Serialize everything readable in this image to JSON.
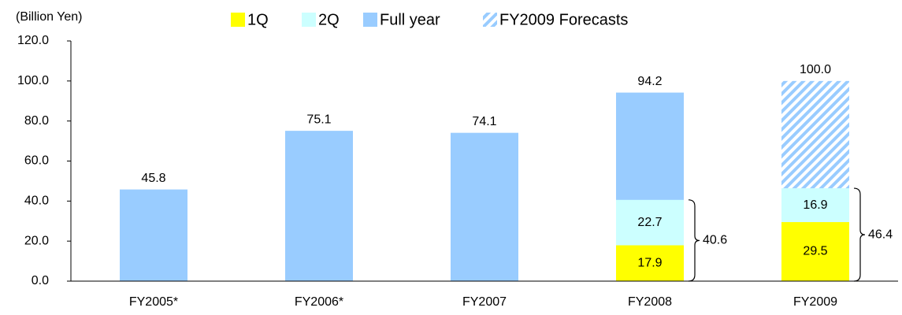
{
  "chart_data": {
    "type": "bar",
    "unit_label": "(Billion Yen)",
    "categories": [
      "FY2005*",
      "FY2006*",
      "FY2007",
      "FY2008",
      "FY2009"
    ],
    "series": [
      {
        "name": "1Q",
        "color": "#ffff00",
        "stacked": true,
        "values": [
          null,
          null,
          null,
          17.9,
          29.5
        ]
      },
      {
        "name": "2Q",
        "color": "#ccffff",
        "stacked": true,
        "values": [
          null,
          null,
          null,
          22.7,
          16.9
        ]
      },
      {
        "name": "Full year",
        "color": "#99ccff",
        "values": [
          45.8,
          75.1,
          74.1,
          94.2,
          null
        ]
      },
      {
        "name": "FY2009 Forecasts",
        "color": "#99ccff",
        "pattern": "hatch",
        "values": [
          null,
          null,
          null,
          null,
          100.0
        ],
        "value_labels": [
          null,
          null,
          null,
          null,
          "100.0"
        ]
      }
    ],
    "brace_values": [
      null,
      null,
      null,
      40.6,
      46.4
    ],
    "ylim": [
      0,
      120
    ],
    "yticks": [
      {
        "value": 0,
        "label": "0.0"
      },
      {
        "value": 20,
        "label": "20.0"
      },
      {
        "value": 40,
        "label": "40.0"
      },
      {
        "value": 60,
        "label": "60.0"
      },
      {
        "value": 80,
        "label": "80.0"
      },
      {
        "value": 100,
        "label": "100.0"
      },
      {
        "value": 120,
        "label": "120.0"
      }
    ],
    "legend": "top"
  }
}
